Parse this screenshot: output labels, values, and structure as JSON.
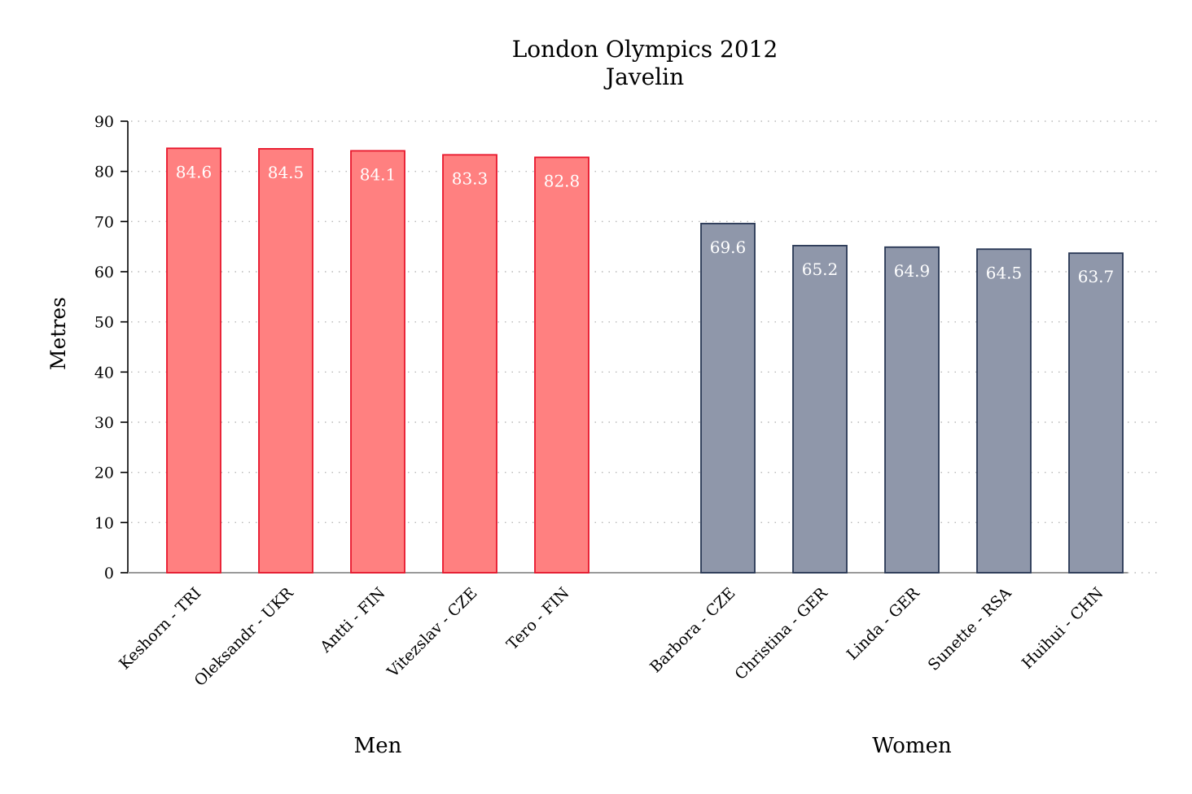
{
  "chart_data": {
    "type": "bar",
    "title": "London Olympics 2012",
    "subtitle": "Javelin",
    "ylabel": "Metres",
    "ylim": [
      0,
      90
    ],
    "yticks": [
      0,
      10,
      20,
      30,
      40,
      50,
      60,
      70,
      80,
      90
    ],
    "grid": true,
    "groups": [
      {
        "name": "Men",
        "color": "#ff8080",
        "edge_color": "#e8162b",
        "categories": [
          "Keshorn - TRI",
          "Oleksandr - UKR",
          "Antti - FIN",
          "Vitezslav - CZE",
          "Tero - FIN"
        ],
        "values": [
          84.6,
          84.5,
          84.1,
          83.3,
          82.8
        ],
        "labels": [
          "84.6",
          "84.5",
          "84.1",
          "83.3",
          "82.8"
        ]
      },
      {
        "name": "Women",
        "color": "#8f97aa",
        "edge_color": "#273654",
        "categories": [
          "Barbora - CZE",
          "Christina - GER",
          "Linda - GER",
          "Sunette - RSA",
          "Huihui - CHN"
        ],
        "values": [
          69.6,
          65.2,
          64.9,
          64.5,
          63.7
        ],
        "labels": [
          "69.6",
          "65.2",
          "64.9",
          "64.5",
          "63.7"
        ]
      }
    ]
  }
}
